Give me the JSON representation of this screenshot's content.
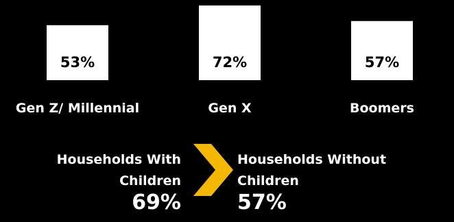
{
  "chart_data": {
    "type": "bar",
    "categories": [
      "Gen Z/ Millennial",
      "Gen X",
      "Boomers"
    ],
    "values": [
      53,
      72,
      57
    ],
    "value_labels": [
      "53%",
      "72%",
      "57%"
    ],
    "title": "",
    "xlabel": "",
    "ylabel": "",
    "ylim": [
      0,
      72
    ],
    "grid": false,
    "legend": "none",
    "colors": {
      "background": "#000000",
      "bar": "#ffffff",
      "bar_label": "#000000",
      "text": "#ffffff",
      "accent": "#f5b800"
    }
  },
  "households": {
    "with_children": {
      "label": "Households With Children",
      "label_line1": "Households With",
      "label_line2": "Children",
      "value": "69%"
    },
    "without_children": {
      "label": "Households Without Children",
      "label_line1": "Households Without",
      "label_line2": "Children",
      "value": "57%"
    },
    "arrow_icon": "chevron-right-icon"
  }
}
